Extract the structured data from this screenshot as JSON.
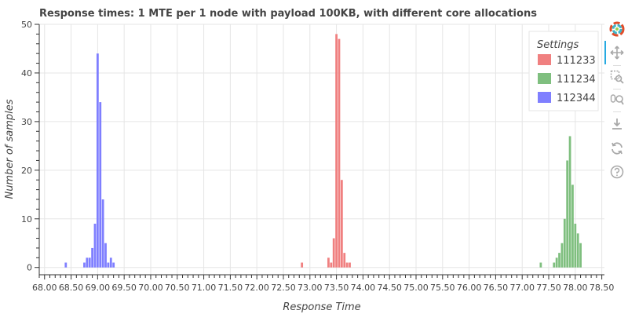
{
  "chart_data": {
    "type": "bar",
    "title": "Response times: 1 MTE per 1 node with payload 100KB, with different core allocations",
    "xlabel": "Response Time",
    "ylabel": "Number of samples",
    "xlim": [
      67.9,
      78.55
    ],
    "ylim": [
      -1.5,
      50
    ],
    "bin_width": 0.05,
    "x_ticks": [
      "68.00",
      "68.50",
      "69.00",
      "69.50",
      "70.00",
      "70.50",
      "71.00",
      "71.50",
      "72.00",
      "72.50",
      "73.00",
      "73.50",
      "74.00",
      "74.50",
      "75.00",
      "75.50",
      "76.00",
      "76.50",
      "77.00",
      "77.50",
      "78.00",
      "78.50"
    ],
    "y_ticks": [
      "0",
      "10",
      "20",
      "30",
      "40",
      "50"
    ],
    "grid": true,
    "legend": {
      "title": "Settings",
      "placement": "top-right"
    },
    "series": [
      {
        "name": "111233",
        "color": "#f08080",
        "points": [
          {
            "x": 72.85,
            "y": 1
          },
          {
            "x": 73.35,
            "y": 2
          },
          {
            "x": 73.4,
            "y": 1
          },
          {
            "x": 73.45,
            "y": 6
          },
          {
            "x": 73.5,
            "y": 48
          },
          {
            "x": 73.55,
            "y": 47
          },
          {
            "x": 73.6,
            "y": 18
          },
          {
            "x": 73.65,
            "y": 3
          },
          {
            "x": 73.7,
            "y": 1
          },
          {
            "x": 73.75,
            "y": 1
          }
        ]
      },
      {
        "name": "111234",
        "color": "#7fbf7f",
        "points": [
          {
            "x": 77.35,
            "y": 1
          },
          {
            "x": 77.6,
            "y": 1
          },
          {
            "x": 77.65,
            "y": 2
          },
          {
            "x": 77.7,
            "y": 3
          },
          {
            "x": 77.75,
            "y": 5
          },
          {
            "x": 77.8,
            "y": 10
          },
          {
            "x": 77.85,
            "y": 22
          },
          {
            "x": 77.9,
            "y": 27
          },
          {
            "x": 77.95,
            "y": 17
          },
          {
            "x": 78.0,
            "y": 9
          },
          {
            "x": 78.05,
            "y": 7
          },
          {
            "x": 78.1,
            "y": 5
          }
        ]
      },
      {
        "name": "112344",
        "color": "#7f7fff",
        "points": [
          {
            "x": 68.4,
            "y": 1
          },
          {
            "x": 68.75,
            "y": 1
          },
          {
            "x": 68.8,
            "y": 2
          },
          {
            "x": 68.85,
            "y": 2
          },
          {
            "x": 68.9,
            "y": 4
          },
          {
            "x": 68.95,
            "y": 9
          },
          {
            "x": 69.0,
            "y": 44
          },
          {
            "x": 69.05,
            "y": 34
          },
          {
            "x": 69.1,
            "y": 14
          },
          {
            "x": 69.15,
            "y": 5
          },
          {
            "x": 69.2,
            "y": 1
          },
          {
            "x": 69.25,
            "y": 2
          },
          {
            "x": 69.3,
            "y": 1
          }
        ]
      }
    ]
  },
  "toolbar": {
    "tools": [
      {
        "name": "bokeh-logo-icon"
      },
      {
        "name": "pan-icon"
      },
      {
        "name": "box-zoom-icon"
      },
      {
        "name": "wheel-zoom-icon"
      },
      {
        "name": "save-icon"
      },
      {
        "name": "reset-icon"
      },
      {
        "name": "help-icon"
      }
    ]
  }
}
